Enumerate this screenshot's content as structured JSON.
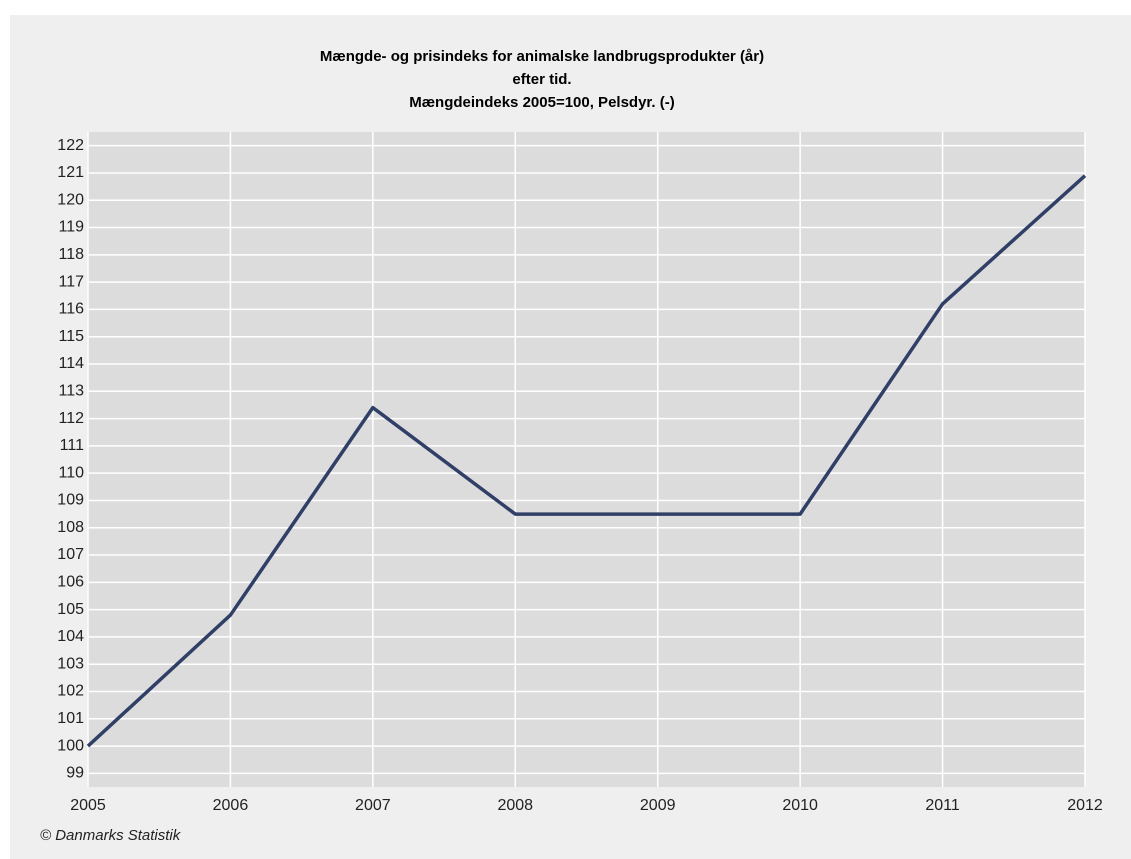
{
  "chart_data": {
    "type": "line",
    "title": [
      "Mængde- og prisindeks for animalske landbrugsprodukter (år)",
      "efter tid.",
      "Mængdeindeks 2005=100, Pelsdyr. (-)"
    ],
    "x": [
      2005,
      2006,
      2007,
      2008,
      2009,
      2010,
      2011,
      2012
    ],
    "series": [
      {
        "color": "#2f3f66",
        "values": [
          100,
          104.8,
          112.4,
          108.5,
          108.5,
          108.5,
          116.2,
          120.9
        ]
      }
    ],
    "xlim": [
      2005,
      2012
    ],
    "xticks": [
      2005,
      2006,
      2007,
      2008,
      2009,
      2010,
      2011,
      2012
    ],
    "ylim": [
      98.5,
      122.5
    ],
    "yticks": [
      99,
      100,
      101,
      102,
      103,
      104,
      105,
      106,
      107,
      108,
      109,
      110,
      111,
      112,
      113,
      114,
      115,
      116,
      117,
      118,
      119,
      120,
      121,
      122
    ],
    "grid": true,
    "source": "© Danmarks Statistik"
  }
}
